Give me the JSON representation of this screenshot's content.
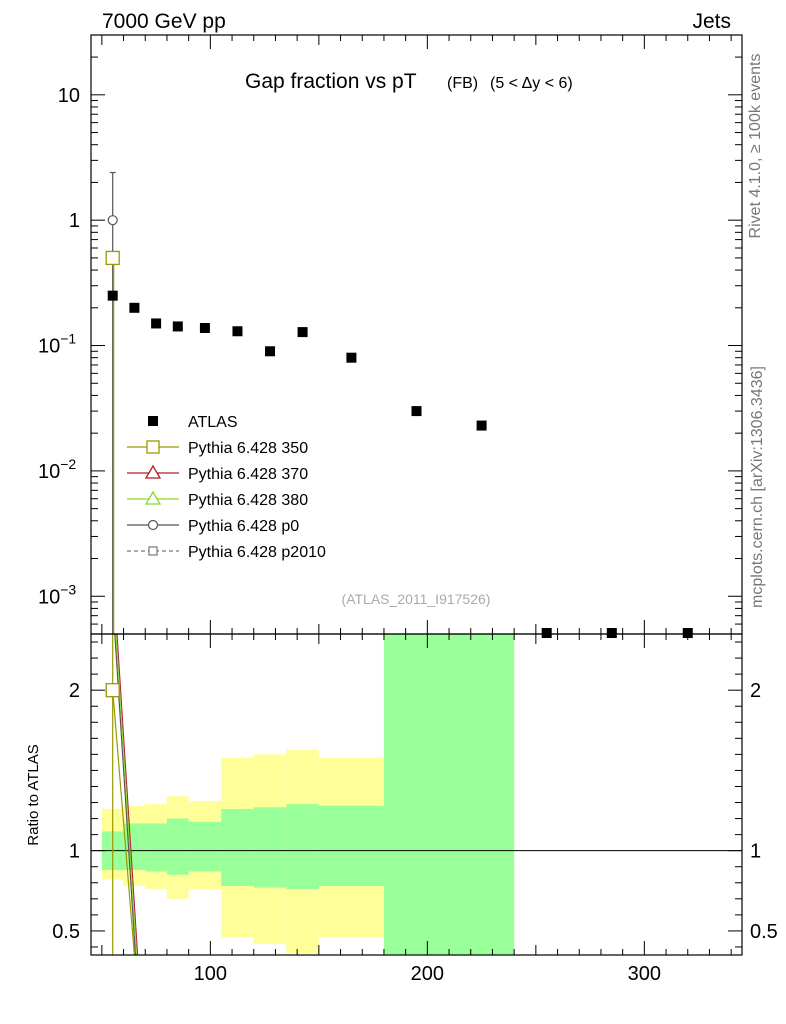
{
  "header": {
    "left": "7000 GeV pp",
    "right": "Jets"
  },
  "side_labels": {
    "rivet": "Rivet 4.1.0, ≥ 100k events",
    "mcplots": "mcplots.cern.ch [arXiv:1306.3436]"
  },
  "chart_data": [
    {
      "type": "scatter",
      "panel": "main",
      "title_main": "Gap fraction vs pT",
      "title_sub": "(FB)",
      "title_range": "(5 < Δy < 6)",
      "watermark": "(ATLAS_2011_I917526)",
      "yscale": "log",
      "ylim": [
        0.0005,
        30
      ],
      "xlim": [
        45,
        345
      ],
      "y_ticks": [
        {
          "value": 10,
          "label": "10"
        },
        {
          "value": 1,
          "label": "1"
        },
        {
          "value": 0.1,
          "base": "10",
          "exp": "−1"
        },
        {
          "value": 0.01,
          "base": "10",
          "exp": "−2"
        },
        {
          "value": 0.001,
          "base": "10",
          "exp": "−3"
        }
      ],
      "legend": {
        "position": "middle-left",
        "entries": [
          {
            "label": "ATLAS",
            "marker": "filled-square",
            "color": "#000000"
          },
          {
            "label": "Pythia 6.428 350",
            "marker": "open-square",
            "color": "#999900"
          },
          {
            "label": "Pythia 6.428 370",
            "marker": "open-triangle",
            "color": "#aa2222"
          },
          {
            "label": "Pythia 6.428 380",
            "marker": "open-triangle",
            "color": "#88dd22"
          },
          {
            "label": "Pythia 6.428 p0",
            "marker": "open-circle",
            "color": "#555555"
          },
          {
            "label": "Pythia 6.428 p2010",
            "marker": "open-square-dashed",
            "color": "#777777"
          }
        ]
      },
      "series": [
        {
          "name": "ATLAS",
          "x": [
            55,
            65,
            75,
            85,
            97.5,
            112.5,
            127.5,
            142.5,
            165,
            195,
            225,
            255,
            285,
            320
          ],
          "y": [
            0.25,
            0.2,
            0.15,
            0.142,
            0.138,
            0.13,
            0.09,
            0.128,
            0.08,
            0.03,
            0.023,
            0.00048,
            0.00048,
            0.00048
          ]
        },
        {
          "name": "Pythia 6.428 350",
          "x": [
            55
          ],
          "y": [
            0.5
          ],
          "err_low": [
            0.0005
          ],
          "err_high": [
            0.5
          ]
        },
        {
          "name": "Pythia 6.428 p0",
          "x": [
            55
          ],
          "y": [
            1.0
          ],
          "err_low": [
            0.0005
          ],
          "err_high": [
            2.4
          ]
        }
      ]
    },
    {
      "type": "area",
      "panel": "ratio",
      "ylabel": "Ratio to ATLAS",
      "xlabel": "",
      "ylim": [
        0.35,
        2.35
      ],
      "xlim": [
        45,
        345
      ],
      "x_ticks": [
        100,
        200,
        300
      ],
      "y_ticks": [
        0.5,
        1,
        2
      ],
      "reference_line": 1,
      "bins": [
        {
          "lo": 50,
          "hi": 60,
          "green": [
            0.88,
            1.12
          ],
          "yellow": [
            0.82,
            1.26
          ]
        },
        {
          "lo": 60,
          "hi": 70,
          "green": [
            0.88,
            1.17
          ],
          "yellow": [
            0.78,
            1.28
          ]
        },
        {
          "lo": 70,
          "hi": 80,
          "green": [
            0.87,
            1.17
          ],
          "yellow": [
            0.76,
            1.29
          ]
        },
        {
          "lo": 80,
          "hi": 90,
          "green": [
            0.85,
            1.2
          ],
          "yellow": [
            0.7,
            1.34
          ]
        },
        {
          "lo": 90,
          "hi": 105,
          "green": [
            0.87,
            1.18
          ],
          "yellow": [
            0.76,
            1.31
          ]
        },
        {
          "lo": 105,
          "hi": 120,
          "green": [
            0.78,
            1.26
          ],
          "yellow": [
            0.46,
            1.58
          ]
        },
        {
          "lo": 120,
          "hi": 135,
          "green": [
            0.77,
            1.27
          ],
          "yellow": [
            0.42,
            1.6
          ]
        },
        {
          "lo": 135,
          "hi": 150,
          "green": [
            0.76,
            1.29
          ],
          "yellow": [
            0.36,
            1.63
          ]
        },
        {
          "lo": 150,
          "hi": 180,
          "green": [
            0.78,
            1.28
          ],
          "yellow": [
            0.46,
            1.58
          ]
        },
        {
          "lo": 180,
          "hi": 240,
          "green": [
            0.35,
            2.35
          ],
          "yellow": [
            0.35,
            2.35
          ]
        }
      ],
      "series": [
        {
          "name": "Pythia 6.428 350",
          "x": [
            55
          ],
          "y": [
            2.0
          ]
        }
      ]
    }
  ]
}
